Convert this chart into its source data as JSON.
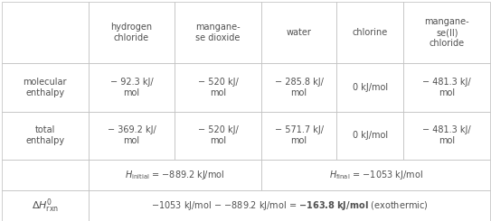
{
  "col_headers": [
    "hydrogen\nchloride",
    "mangane-\nse dioxide",
    "water",
    "chlorine",
    "mangane-\nse(II)\nchloride"
  ],
  "row_headers": [
    "molecular\nenthalpy",
    "total\nenthalpy",
    "",
    "ΔHᴼ₀ᵣₙ"
  ],
  "mol_enthalpy": [
    "− 92.3 kJ/\nmol",
    "− 520 kJ/\nmol",
    "− 285.8 kJ/\nmol",
    "0 kJ/mol",
    "− 481.3 kJ/\nmol"
  ],
  "total_enthalpy": [
    "− 369.2 kJ/\nmol",
    "− 520 kJ/\nmol",
    "− 571.7 kJ/\nmol",
    "0 kJ/mol",
    "− 481.3 kJ/\nmol"
  ],
  "h_initial": "Hᵢₙᵢₜᵢₐₗ = −889.2 kJ/mol",
  "h_final": "Hₙᵢₙₐₗ = −1053 kJ/mol",
  "delta_h": "−1053 kJ/mol − −889.2 kJ/mol = −163.8 kJ/mol (exothermic)",
  "bg_color": "#ffffff",
  "border_color": "#cccccc",
  "text_color": "#505050",
  "header_color": "#505050"
}
